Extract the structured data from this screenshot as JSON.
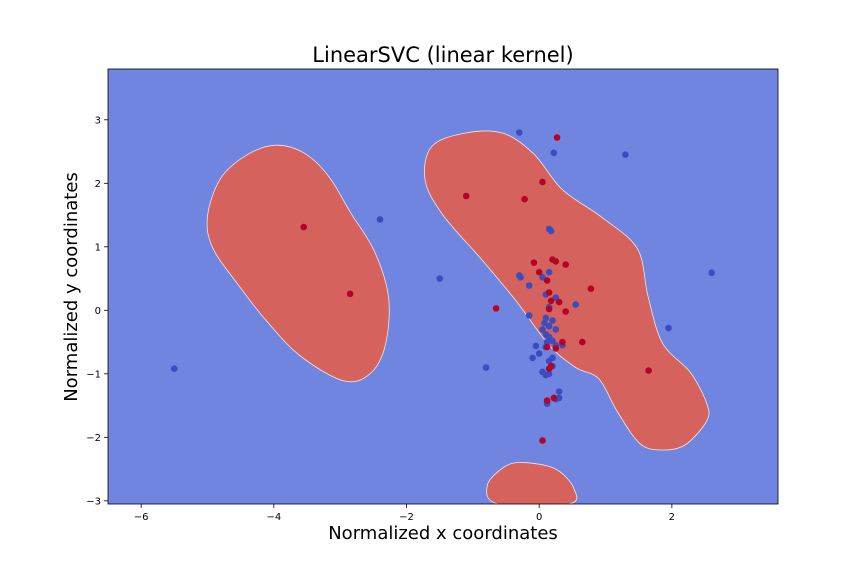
{
  "chart_data": {
    "type": "scatter",
    "title": "LinearSVC (linear kernel)",
    "xlabel": "Normalized x coordinates",
    "ylabel": "Normalized y coordinates",
    "xlim": [
      -6.5,
      3.6
    ],
    "ylim": [
      -3.05,
      3.8
    ],
    "xticks": [
      -6,
      -4,
      -2,
      0,
      2
    ],
    "yticks": [
      -3,
      -2,
      -1,
      0,
      1,
      2,
      3
    ],
    "grid": false,
    "colors": {
      "background_region": "#7085e0",
      "decision_region": "#d6625d",
      "class_0_points": "#3b4cc0",
      "class_1_points": "#b40426"
    },
    "decision_regions": [
      {
        "class": 1,
        "boundary": [
          [
            -3.97,
            2.6
          ],
          [
            -3.55,
            2.48
          ],
          [
            -3.18,
            2.12
          ],
          [
            -2.85,
            1.55
          ],
          [
            -2.48,
            0.92
          ],
          [
            -2.27,
            0.2
          ],
          [
            -2.32,
            -0.55
          ],
          [
            -2.55,
            -1.0
          ],
          [
            -2.95,
            -1.11
          ],
          [
            -3.6,
            -0.72
          ],
          [
            -4.1,
            -0.18
          ],
          [
            -4.52,
            0.38
          ],
          [
            -4.92,
            0.98
          ],
          [
            -5.0,
            1.48
          ],
          [
            -4.8,
            2.08
          ],
          [
            -4.4,
            2.45
          ]
        ]
      },
      {
        "class": 1,
        "boundary": [
          [
            -1.12,
            2.79
          ],
          [
            -0.55,
            2.79
          ],
          [
            -0.08,
            2.46
          ],
          [
            0.35,
            1.9
          ],
          [
            0.95,
            1.46
          ],
          [
            1.48,
            0.97
          ],
          [
            1.64,
            0.22
          ],
          [
            1.86,
            -0.52
          ],
          [
            2.28,
            -0.98
          ],
          [
            2.53,
            -1.48
          ],
          [
            2.52,
            -1.75
          ],
          [
            2.2,
            -2.12
          ],
          [
            1.85,
            -2.2
          ],
          [
            1.52,
            -2.1
          ],
          [
            1.18,
            -1.6
          ],
          [
            0.9,
            -1.08
          ],
          [
            0.55,
            -0.9
          ],
          [
            0.15,
            -0.55
          ],
          [
            -0.35,
            0.15
          ],
          [
            -0.85,
            0.78
          ],
          [
            -1.45,
            1.5
          ],
          [
            -1.72,
            2.05
          ],
          [
            -1.62,
            2.58
          ]
        ]
      },
      {
        "class": 1,
        "boundary": [
          [
            -0.5,
            -2.45
          ],
          [
            -0.2,
            -2.4
          ],
          [
            0.25,
            -2.5
          ],
          [
            0.52,
            -2.8
          ],
          [
            0.45,
            -3.05
          ],
          [
            -0.62,
            -3.05
          ],
          [
            -0.78,
            -2.75
          ]
        ]
      }
    ],
    "series": [
      {
        "class": 0,
        "points": [
          [
            -0.3,
            2.8
          ],
          [
            0.22,
            2.48
          ],
          [
            1.3,
            2.45
          ],
          [
            -2.4,
            1.43
          ],
          [
            0.15,
            1.28
          ],
          [
            0.18,
            1.25
          ],
          [
            -1.5,
            0.5
          ],
          [
            -0.3,
            0.55
          ],
          [
            -0.28,
            0.52
          ],
          [
            0.15,
            0.6
          ],
          [
            0.05,
            0.52
          ],
          [
            2.6,
            0.59
          ],
          [
            -0.15,
            0.39
          ],
          [
            0.1,
            0.25
          ],
          [
            0.25,
            0.2
          ],
          [
            0.55,
            0.09
          ],
          [
            0.15,
            0.05
          ],
          [
            -0.15,
            -0.08
          ],
          [
            0.1,
            -0.12
          ],
          [
            0.2,
            -0.16
          ],
          [
            0.08,
            -0.2
          ],
          [
            0.15,
            -0.25
          ],
          [
            0.05,
            -0.3
          ],
          [
            0.25,
            -0.3
          ],
          [
            0.1,
            -0.38
          ],
          [
            0.15,
            -0.42
          ],
          [
            0.2,
            -0.48
          ],
          [
            0.12,
            -0.5
          ],
          [
            0.25,
            -0.55
          ],
          [
            0.1,
            -0.58
          ],
          [
            -0.05,
            -0.56
          ],
          [
            0.35,
            -0.55
          ],
          [
            1.95,
            -0.28
          ],
          [
            0.0,
            -0.68
          ],
          [
            -0.1,
            -0.75
          ],
          [
            0.2,
            -0.75
          ],
          [
            0.15,
            -0.8
          ],
          [
            0.2,
            -0.88
          ],
          [
            -0.8,
            -0.9
          ],
          [
            -5.5,
            -0.92
          ],
          [
            0.05,
            -0.97
          ],
          [
            0.15,
            -1.0
          ],
          [
            0.1,
            -1.02
          ],
          [
            0.3,
            -1.28
          ],
          [
            0.3,
            -1.38
          ],
          [
            0.25,
            -1.4
          ],
          [
            0.12,
            -1.47
          ]
        ]
      },
      {
        "class": 1,
        "points": [
          [
            0.27,
            2.72
          ],
          [
            0.05,
            2.02
          ],
          [
            -1.1,
            1.8
          ],
          [
            -0.22,
            1.75
          ],
          [
            -3.55,
            1.31
          ],
          [
            0.2,
            0.8
          ],
          [
            0.25,
            0.77
          ],
          [
            0.4,
            0.72
          ],
          [
            -0.08,
            0.75
          ],
          [
            0.0,
            0.6
          ],
          [
            0.12,
            0.47
          ],
          [
            0.78,
            0.34
          ],
          [
            -2.85,
            0.26
          ],
          [
            0.15,
            0.28
          ],
          [
            0.18,
            0.15
          ],
          [
            0.3,
            0.13
          ],
          [
            0.15,
            0.02
          ],
          [
            -0.65,
            0.03
          ],
          [
            0.4,
            -0.02
          ],
          [
            0.65,
            -0.5
          ],
          [
            0.35,
            -0.5
          ],
          [
            0.12,
            -0.58
          ],
          [
            0.25,
            -0.6
          ],
          [
            0.18,
            -0.88
          ],
          [
            1.65,
            -0.95
          ],
          [
            0.15,
            -0.92
          ],
          [
            0.22,
            -1.38
          ],
          [
            0.12,
            -1.42
          ],
          [
            0.05,
            -2.05
          ]
        ]
      }
    ]
  }
}
